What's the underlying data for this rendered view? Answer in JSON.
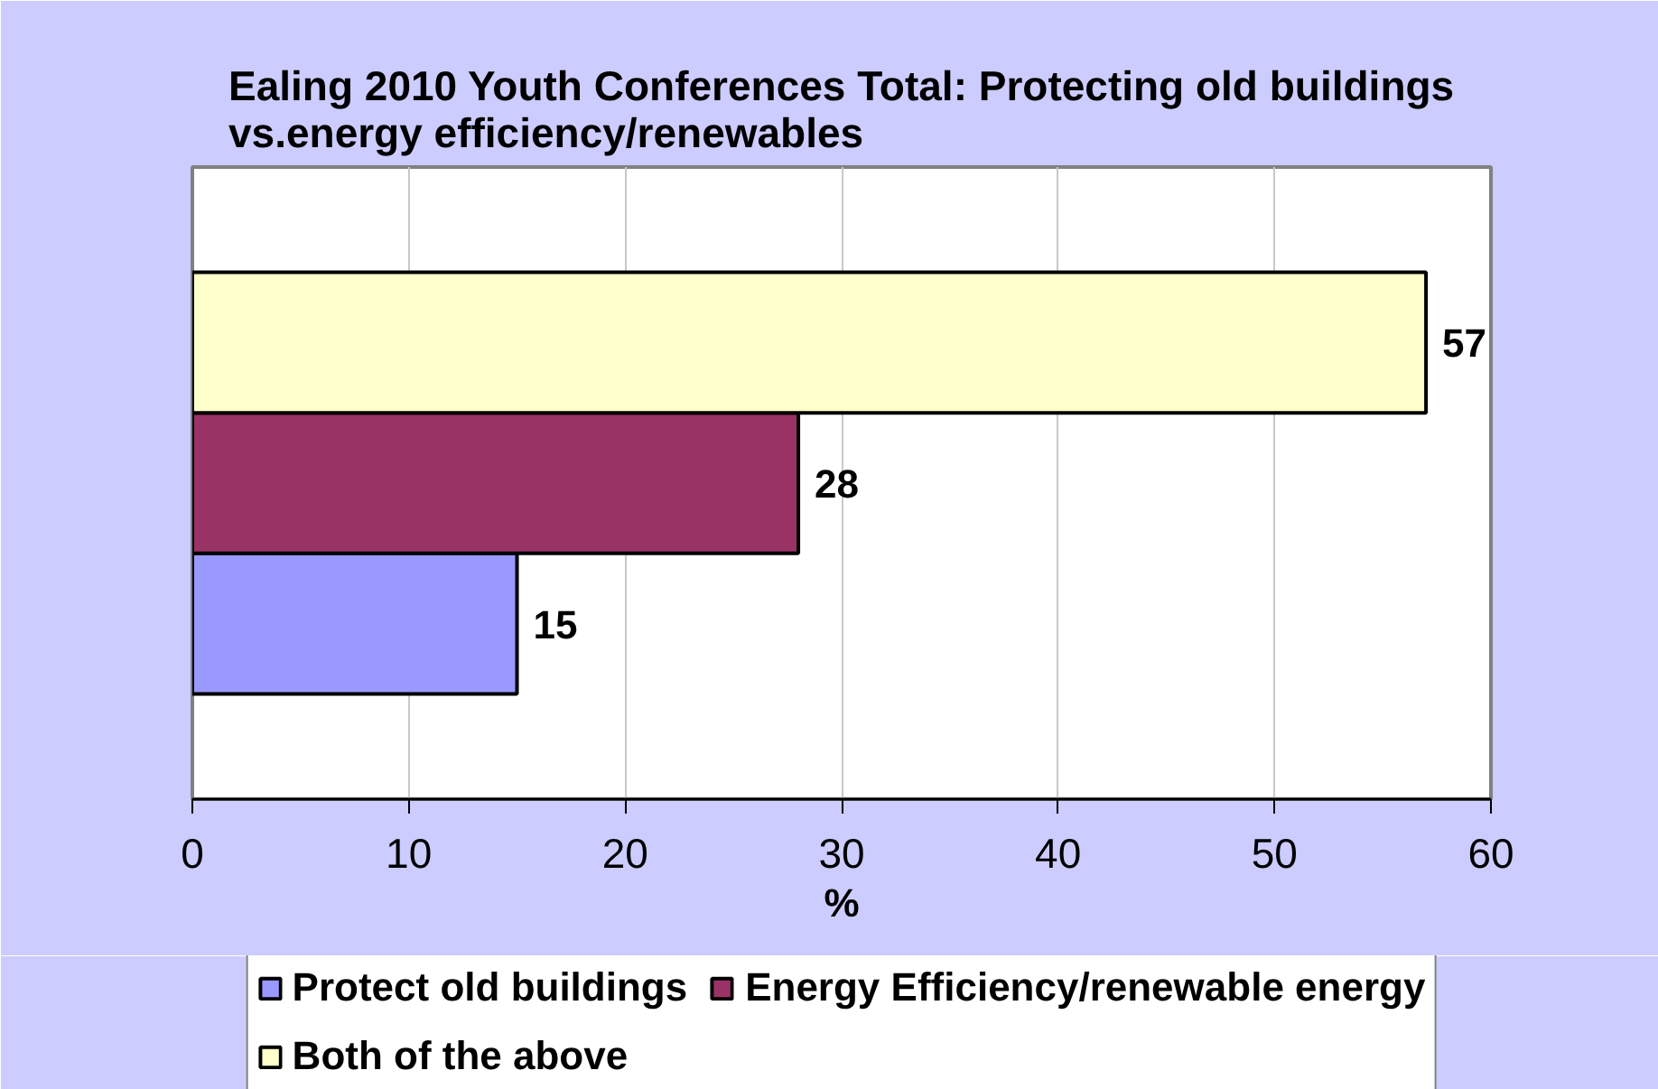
{
  "chart_data": {
    "type": "bar",
    "orientation": "horizontal",
    "title": "Ealing 2010 Youth Conferences Total: Protecting old buildings\nvs.energy efficiency/renewables",
    "xlabel": "%",
    "categories": [
      null
    ],
    "series": [
      {
        "name": "Protect old buildings",
        "color": "#9999ff",
        "values": [
          15
        ]
      },
      {
        "name": "Energy Efficiency/renewable energy",
        "color": "#993366",
        "values": [
          28
        ]
      },
      {
        "name": "Both of the above",
        "color": "#ffffcc",
        "values": [
          57
        ]
      }
    ],
    "xlim": [
      0,
      60
    ],
    "xticks": [
      0,
      10,
      20,
      30,
      40,
      50,
      60
    ],
    "grid": "x",
    "legend": "bottom",
    "data_labels": true
  }
}
